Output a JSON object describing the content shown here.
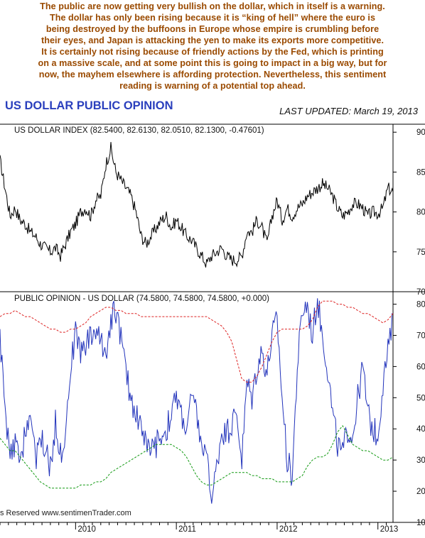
{
  "commentary": [
    "The public are now getting very bullish on the dollar, which in itself is a warning.",
    "The dollar has only been rising because it is “king of hell” where the euro is",
    "being destroyed by the buffoons in Europe whose empire is crumbling before",
    "their eyes, and Japan is attacking the yen to make its exports more competitive.",
    "It is certainly not rising because of friendly actions by the Fed, which is printing",
    "on a massive scale, and at some point this is going to impact in a big way, but for",
    "now, the mayhem elsewhere is affording protection. Nevertheless, this sentiment",
    "reading is warning of a potential top ahead."
  ],
  "header": {
    "title": "US DOLLAR PUBLIC OPINION",
    "last_updated": "LAST UPDATED:  March 19, 2013"
  },
  "watermark": "s Reserved  www.sentimenTrader.com",
  "colors": {
    "commentary": "#9a4a00",
    "title": "#2a3fbd",
    "price_line": "#000000",
    "opinion_line": "#2233bb",
    "upper_band": "#dd2222",
    "lower_band": "#119911"
  },
  "chart_data": [
    {
      "type": "line",
      "label": "US DOLLAR INDEX (82.5400, 82.6130, 82.0510, 82.1300, -0.47601)",
      "ylim": [
        70,
        91
      ],
      "yticks": [
        "90",
        "85",
        "80",
        "75",
        "70"
      ],
      "ytick_values": [
        90,
        85,
        80,
        75,
        70
      ],
      "xlim": [
        2009.25,
        2013.15
      ],
      "x_labels": [
        "2010",
        "2011",
        "2012",
        "2013"
      ],
      "x_label_values": [
        2010.0,
        2011.0,
        2012.0,
        2013.0
      ],
      "grid": false,
      "x": [
        2009.25,
        2009.3,
        2009.35,
        2009.4,
        2009.45,
        2009.5,
        2009.55,
        2009.6,
        2009.65,
        2009.7,
        2009.75,
        2009.8,
        2009.85,
        2009.9,
        2009.95,
        2010.0,
        2010.05,
        2010.1,
        2010.15,
        2010.2,
        2010.25,
        2010.3,
        2010.35,
        2010.4,
        2010.45,
        2010.5,
        2010.55,
        2010.6,
        2010.65,
        2010.7,
        2010.75,
        2010.8,
        2010.85,
        2010.9,
        2010.95,
        2011.0,
        2011.05,
        2011.1,
        2011.15,
        2011.2,
        2011.25,
        2011.3,
        2011.35,
        2011.4,
        2011.45,
        2011.5,
        2011.55,
        2011.6,
        2011.65,
        2011.7,
        2011.75,
        2011.8,
        2011.85,
        2011.9,
        2011.95,
        2012.0,
        2012.05,
        2012.1,
        2012.15,
        2012.2,
        2012.25,
        2012.3,
        2012.35,
        2012.4,
        2012.45,
        2012.5,
        2012.55,
        2012.6,
        2012.65,
        2012.7,
        2012.75,
        2012.8,
        2012.85,
        2012.9,
        2012.95,
        2013.0,
        2013.05,
        2013.1,
        2013.15
      ],
      "series": [
        {
          "name": "",
          "values": [
            86.5,
            83,
            79.5,
            80.5,
            79,
            78.5,
            77.5,
            77,
            76,
            75.5,
            75,
            75.5,
            74.5,
            76,
            77.5,
            78.5,
            80,
            80.5,
            79.5,
            81.5,
            82,
            86,
            88,
            85,
            84,
            83,
            82,
            80,
            77,
            76,
            77,
            78,
            79,
            79.5,
            78,
            79,
            78,
            77,
            76.5,
            75.5,
            74.5,
            73.5,
            74.5,
            75,
            75.5,
            74.5,
            74,
            74,
            74.5,
            77.5,
            77.5,
            79,
            78,
            76,
            79.5,
            81.5,
            79,
            80.5,
            79.5,
            80.5,
            81,
            82,
            82.5,
            83,
            83.5,
            83,
            82,
            80.5,
            79.5,
            80,
            81,
            81,
            80.5,
            79.5,
            80,
            79.8,
            80.5,
            83,
            82.5
          ]
        }
      ]
    },
    {
      "type": "line",
      "label": "PUBLIC OPINION - US DOLLAR (74.5800, 74.5800, 74.5800, +0.000)",
      "ylim": [
        10,
        84
      ],
      "yticks": [
        "80",
        "70",
        "60",
        "50",
        "40",
        "30",
        "20",
        "10"
      ],
      "ytick_values": [
        80,
        70,
        60,
        50,
        40,
        30,
        20,
        10
      ],
      "xlim": [
        2009.25,
        2013.15
      ],
      "x_labels": [
        "2010",
        "2011",
        "2012",
        "2013"
      ],
      "x_label_values": [
        2010.0,
        2011.0,
        2012.0,
        2013.0
      ],
      "grid": false,
      "x": [
        2009.25,
        2009.3,
        2009.35,
        2009.4,
        2009.45,
        2009.5,
        2009.55,
        2009.6,
        2009.65,
        2009.7,
        2009.75,
        2009.8,
        2009.85,
        2009.9,
        2009.95,
        2010.0,
        2010.05,
        2010.1,
        2010.15,
        2010.2,
        2010.25,
        2010.3,
        2010.35,
        2010.4,
        2010.45,
        2010.5,
        2010.55,
        2010.6,
        2010.65,
        2010.7,
        2010.75,
        2010.8,
        2010.85,
        2010.9,
        2010.95,
        2011.0,
        2011.05,
        2011.1,
        2011.15,
        2011.2,
        2011.25,
        2011.3,
        2011.35,
        2011.4,
        2011.45,
        2011.5,
        2011.55,
        2011.6,
        2011.65,
        2011.7,
        2011.75,
        2011.8,
        2011.85,
        2011.9,
        2011.95,
        2012.0,
        2012.05,
        2012.1,
        2012.15,
        2012.2,
        2012.25,
        2012.3,
        2012.35,
        2012.4,
        2012.45,
        2012.5,
        2012.55,
        2012.6,
        2012.65,
        2012.7,
        2012.75,
        2012.8,
        2012.85,
        2012.9,
        2012.95,
        2013.0,
        2013.05,
        2013.1,
        2013.15
      ],
      "series": [
        {
          "name": "",
          "color": "#2233bb",
          "values": [
            70,
            45,
            30,
            35,
            28,
            40,
            45,
            30,
            38,
            33,
            27,
            42,
            32,
            40,
            60,
            70,
            65,
            68,
            70,
            72,
            68,
            65,
            75,
            78,
            70,
            58,
            50,
            45,
            42,
            35,
            32,
            35,
            38,
            40,
            45,
            50,
            45,
            40,
            50,
            45,
            35,
            30,
            17,
            28,
            40,
            38,
            42,
            45,
            30,
            55,
            50,
            60,
            65,
            58,
            70,
            75,
            50,
            30,
            25,
            60,
            78,
            80,
            70,
            82,
            70,
            60,
            45,
            35,
            32,
            40,
            38,
            50,
            60,
            45,
            40,
            38,
            55,
            65,
            75
          ]
        },
        {
          "name": "",
          "color": "#dd2222",
          "values": [
            76,
            77,
            77,
            78,
            77,
            76,
            76,
            75,
            74,
            73,
            72,
            72,
            71,
            71,
            72,
            72,
            73,
            74,
            76,
            77,
            78,
            79,
            79,
            78,
            78,
            77,
            77,
            77,
            76,
            76,
            76,
            76,
            76,
            76,
            76,
            76,
            76,
            76,
            76,
            76,
            76,
            76,
            75,
            74,
            73,
            71,
            68,
            62,
            56,
            55,
            55,
            57,
            60,
            64,
            68,
            71,
            72,
            72,
            72,
            72,
            72,
            73,
            75,
            79,
            81,
            81,
            81,
            80,
            80,
            79,
            79,
            78,
            77,
            77,
            76,
            75,
            74,
            75,
            77
          ]
        },
        {
          "name": "",
          "color": "#119911",
          "values": [
            37,
            35,
            33,
            33,
            31,
            29,
            27,
            25,
            23,
            22,
            21,
            21,
            21,
            21,
            21,
            21,
            22,
            22,
            22,
            23,
            23,
            24,
            26,
            27,
            28,
            29,
            30,
            31,
            32,
            33,
            34,
            35,
            35,
            35,
            35,
            34,
            33,
            31,
            28,
            25,
            23,
            22,
            22,
            23,
            24,
            25,
            26,
            26,
            26,
            26,
            25,
            25,
            24,
            24,
            24,
            23,
            23,
            23,
            23,
            24,
            25,
            28,
            30,
            31,
            31,
            32,
            35,
            39,
            41,
            38,
            35,
            34,
            33,
            33,
            32,
            31,
            30,
            30,
            31
          ]
        }
      ]
    }
  ]
}
